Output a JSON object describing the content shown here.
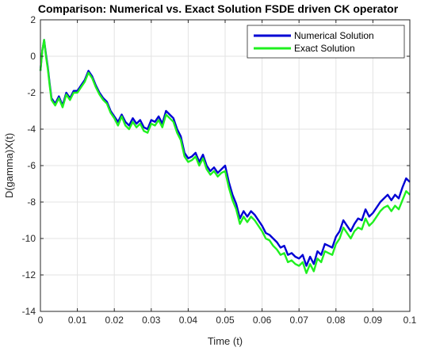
{
  "chart_data": {
    "type": "line",
    "title": "Comparison: Numerical vs. Exact Solution FSDE driven CK operator",
    "xlabel": "Time (t)",
    "ylabel": "D(gamma)X(t)",
    "xlim": [
      0,
      0.1
    ],
    "ylim": [
      -14,
      2
    ],
    "xticks": [
      0,
      0.01,
      0.02,
      0.03,
      0.04,
      0.05,
      0.06,
      0.07,
      0.08,
      0.09,
      0.1
    ],
    "xtick_labels": [
      "0",
      "0.01",
      "0.02",
      "0.03",
      "0.04",
      "0.05",
      "0.06",
      "0.07",
      "0.08",
      "0.09",
      "0.1"
    ],
    "yticks": [
      -14,
      -12,
      -10,
      -8,
      -6,
      -4,
      -2,
      0,
      2
    ],
    "ytick_labels": [
      "-14",
      "-12",
      "-10",
      "-8",
      "-6",
      "-4",
      "-2",
      "0",
      "2"
    ],
    "grid": true,
    "legend_position": "top-right",
    "series": [
      {
        "name": "Numerical Solution",
        "color": "#0000d4",
        "x": [
          0,
          0.0005,
          0.001,
          0.0015,
          0.002,
          0.0025,
          0.003,
          0.004,
          0.005,
          0.006,
          0.007,
          0.008,
          0.009,
          0.01,
          0.011,
          0.012,
          0.013,
          0.014,
          0.015,
          0.016,
          0.017,
          0.018,
          0.019,
          0.02,
          0.021,
          0.022,
          0.023,
          0.024,
          0.025,
          0.026,
          0.027,
          0.028,
          0.029,
          0.03,
          0.031,
          0.032,
          0.033,
          0.034,
          0.035,
          0.036,
          0.037,
          0.038,
          0.039,
          0.04,
          0.041,
          0.042,
          0.043,
          0.044,
          0.045,
          0.046,
          0.047,
          0.048,
          0.049,
          0.05,
          0.051,
          0.052,
          0.053,
          0.054,
          0.055,
          0.056,
          0.057,
          0.058,
          0.059,
          0.06,
          0.061,
          0.062,
          0.063,
          0.064,
          0.065,
          0.066,
          0.067,
          0.068,
          0.069,
          0.07,
          0.071,
          0.072,
          0.073,
          0.074,
          0.075,
          0.076,
          0.077,
          0.078,
          0.079,
          0.08,
          0.081,
          0.082,
          0.083,
          0.084,
          0.085,
          0.086,
          0.087,
          0.088,
          0.089,
          0.09,
          0.091,
          0.092,
          0.093,
          0.094,
          0.095,
          0.096,
          0.097,
          0.098,
          0.099,
          0.1
        ],
        "values": [
          -0.8,
          0.3,
          0.9,
          0.1,
          -0.6,
          -1.5,
          -2.3,
          -2.6,
          -2.2,
          -2.7,
          -2.0,
          -2.3,
          -1.9,
          -1.9,
          -1.6,
          -1.3,
          -0.8,
          -1.1,
          -1.6,
          -2.0,
          -2.3,
          -2.5,
          -3.0,
          -3.3,
          -3.6,
          -3.2,
          -3.6,
          -3.8,
          -3.4,
          -3.7,
          -3.5,
          -3.9,
          -4.0,
          -3.5,
          -3.6,
          -3.3,
          -3.7,
          -3.0,
          -3.2,
          -3.4,
          -4.0,
          -4.4,
          -5.3,
          -5.6,
          -5.5,
          -5.3,
          -5.8,
          -5.4,
          -6.0,
          -6.3,
          -6.1,
          -6.4,
          -6.2,
          -6.0,
          -6.9,
          -7.6,
          -8.1,
          -8.9,
          -8.5,
          -8.8,
          -8.5,
          -8.7,
          -9.0,
          -9.3,
          -9.7,
          -9.8,
          -10.0,
          -10.2,
          -10.5,
          -10.4,
          -10.9,
          -10.8,
          -11.0,
          -11.1,
          -10.9,
          -11.5,
          -11.0,
          -11.4,
          -10.7,
          -10.9,
          -10.3,
          -10.4,
          -10.5,
          -9.9,
          -9.6,
          -9.0,
          -9.3,
          -9.6,
          -9.2,
          -8.9,
          -9.0,
          -8.4,
          -8.8,
          -8.6,
          -8.3,
          -8.0,
          -7.8,
          -7.6,
          -7.9,
          -7.6,
          -7.8,
          -7.2,
          -6.7,
          -6.9
        ]
      },
      {
        "name": "Exact Solution",
        "color": "#1ff01f",
        "x": [
          0,
          0.0005,
          0.001,
          0.0015,
          0.002,
          0.0025,
          0.003,
          0.004,
          0.005,
          0.006,
          0.007,
          0.008,
          0.009,
          0.01,
          0.011,
          0.012,
          0.013,
          0.014,
          0.015,
          0.016,
          0.017,
          0.018,
          0.019,
          0.02,
          0.021,
          0.022,
          0.023,
          0.024,
          0.025,
          0.026,
          0.027,
          0.028,
          0.029,
          0.03,
          0.031,
          0.032,
          0.033,
          0.034,
          0.035,
          0.036,
          0.037,
          0.038,
          0.039,
          0.04,
          0.041,
          0.042,
          0.043,
          0.044,
          0.045,
          0.046,
          0.047,
          0.048,
          0.049,
          0.05,
          0.051,
          0.052,
          0.053,
          0.054,
          0.055,
          0.056,
          0.057,
          0.058,
          0.059,
          0.06,
          0.061,
          0.062,
          0.063,
          0.064,
          0.065,
          0.066,
          0.067,
          0.068,
          0.069,
          0.07,
          0.071,
          0.072,
          0.073,
          0.074,
          0.075,
          0.076,
          0.077,
          0.078,
          0.079,
          0.08,
          0.081,
          0.082,
          0.083,
          0.084,
          0.085,
          0.086,
          0.087,
          0.088,
          0.089,
          0.09,
          0.091,
          0.092,
          0.093,
          0.094,
          0.095,
          0.096,
          0.097,
          0.098,
          0.099,
          0.1
        ],
        "values": [
          -0.8,
          0.3,
          0.9,
          0.0,
          -0.7,
          -1.6,
          -2.4,
          -2.7,
          -2.3,
          -2.8,
          -2.1,
          -2.4,
          -2.0,
          -2.0,
          -1.7,
          -1.4,
          -0.9,
          -1.2,
          -1.7,
          -2.1,
          -2.4,
          -2.6,
          -3.1,
          -3.4,
          -3.8,
          -3.3,
          -3.8,
          -4.0,
          -3.6,
          -3.9,
          -3.7,
          -4.1,
          -4.2,
          -3.7,
          -3.8,
          -3.5,
          -3.9,
          -3.2,
          -3.4,
          -3.6,
          -4.2,
          -4.6,
          -5.5,
          -5.8,
          -5.7,
          -5.5,
          -6.0,
          -5.6,
          -6.2,
          -6.5,
          -6.3,
          -6.6,
          -6.4,
          -6.3,
          -7.2,
          -7.9,
          -8.4,
          -9.2,
          -8.8,
          -9.1,
          -8.8,
          -9.0,
          -9.3,
          -9.6,
          -10.0,
          -10.1,
          -10.4,
          -10.6,
          -10.9,
          -10.8,
          -11.3,
          -11.2,
          -11.4,
          -11.5,
          -11.3,
          -11.9,
          -11.4,
          -11.8,
          -11.1,
          -11.3,
          -10.7,
          -10.8,
          -10.9,
          -10.3,
          -10.0,
          -9.4,
          -9.7,
          -10.0,
          -9.6,
          -9.4,
          -9.5,
          -8.9,
          -9.3,
          -9.1,
          -8.8,
          -8.5,
          -8.3,
          -8.2,
          -8.5,
          -8.2,
          -8.4,
          -7.9,
          -7.4,
          -7.6
        ]
      }
    ]
  }
}
